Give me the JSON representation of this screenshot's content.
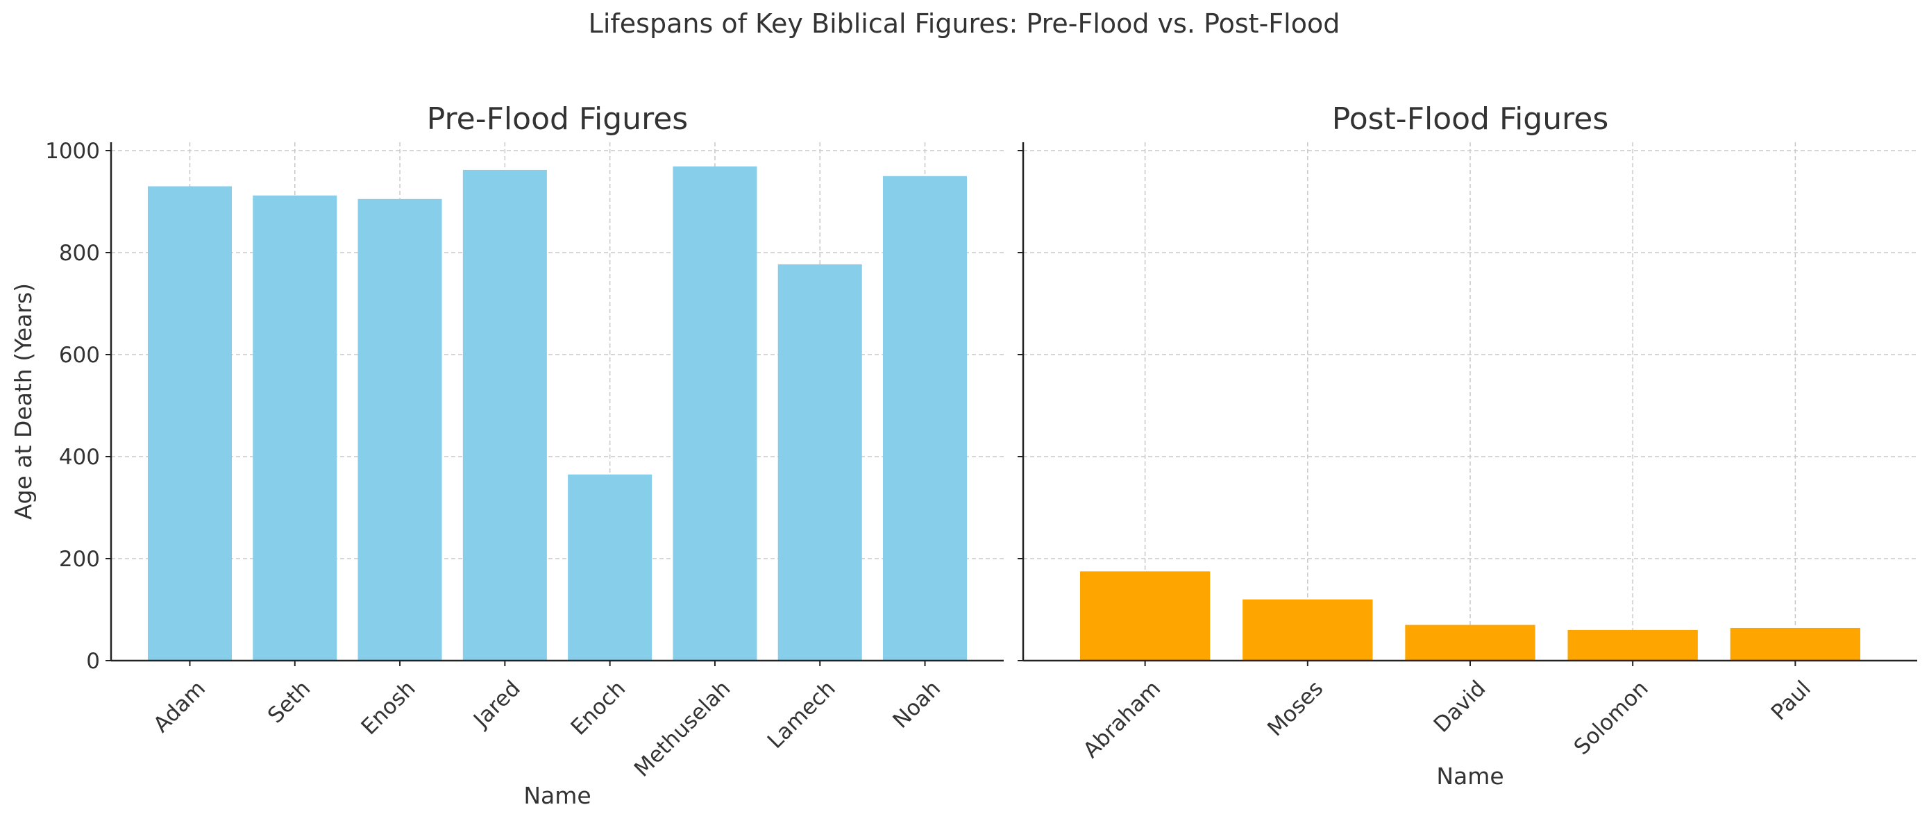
{
  "figure": {
    "title": "Lifespans of Key Biblical Figures: Pre-Flood vs. Post-Flood"
  },
  "chart_data": [
    {
      "type": "bar",
      "title": "Pre-Flood Figures",
      "xlabel": "Name",
      "ylabel": "Age at Death (Years)",
      "categories": [
        "Adam",
        "Seth",
        "Enosh",
        "Jared",
        "Enoch",
        "Methuselah",
        "Lamech",
        "Noah"
      ],
      "values": [
        930,
        912,
        905,
        962,
        365,
        969,
        777,
        950
      ],
      "ylim": [
        0,
        1000
      ],
      "yticks": [
        0,
        200,
        400,
        600,
        800,
        1000
      ],
      "color": "#87CEEB",
      "grid": true
    },
    {
      "type": "bar",
      "title": "Post-Flood Figures",
      "xlabel": "Name",
      "ylabel": "",
      "categories": [
        "Abraham",
        "Moses",
        "David",
        "Solomon",
        "Paul"
      ],
      "values": [
        175,
        120,
        70,
        60,
        64
      ],
      "ylim": [
        0,
        1000
      ],
      "yticks": [
        0,
        200,
        400,
        600,
        800,
        1000
      ],
      "color": "#FFA500",
      "grid": true,
      "shared_y": true
    }
  ]
}
